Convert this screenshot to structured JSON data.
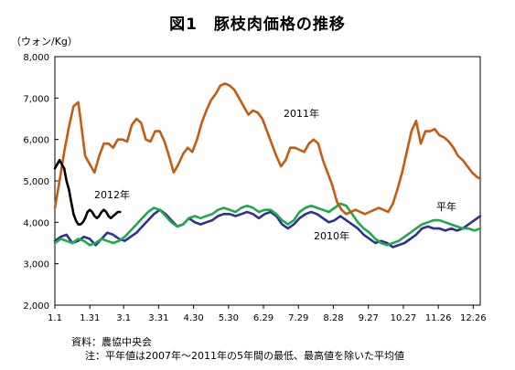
{
  "chart_data": {
    "type": "line",
    "title": "図1　豚枝肉価格の推移",
    "ylabel": "（ウォン/Kg）",
    "xlabel": "",
    "ylim": [
      2000,
      8000
    ],
    "yticks": [
      2000,
      3000,
      4000,
      5000,
      6000,
      7000,
      8000
    ],
    "ytick_labels": [
      "2,000",
      "3,000",
      "4,000",
      "5,000",
      "6,000",
      "7,000",
      "8,000"
    ],
    "x_domain": [
      0,
      365
    ],
    "x_ticks": [
      {
        "label": "1.1",
        "x": 0
      },
      {
        "label": "1.31",
        "x": 30
      },
      {
        "label": "3.1",
        "x": 59
      },
      {
        "label": "3.31",
        "x": 89
      },
      {
        "label": "4.30",
        "x": 119
      },
      {
        "label": "5.30",
        "x": 149
      },
      {
        "label": "6.29",
        "x": 179
      },
      {
        "label": "7.29",
        "x": 209
      },
      {
        "label": "8.28",
        "x": 239
      },
      {
        "label": "9.27",
        "x": 269
      },
      {
        "label": "10.27",
        "x": 299
      },
      {
        "label": "11.26",
        "x": 329
      },
      {
        "label": "12.26",
        "x": 359
      }
    ],
    "grid": false,
    "series": [
      {
        "name": "2011年",
        "color": "#c55a11",
        "x": [
          0,
          4,
          8,
          12,
          16,
          20,
          22,
          26,
          30,
          34,
          38,
          42,
          46,
          50,
          54,
          58,
          62,
          66,
          70,
          74,
          78,
          82,
          86,
          90,
          94,
          98,
          102,
          106,
          110,
          114,
          118,
          122,
          126,
          130,
          134,
          138,
          142,
          146,
          150,
          154,
          158,
          162,
          166,
          170,
          174,
          178,
          182,
          186,
          190,
          194,
          198,
          202,
          206,
          210,
          214,
          218,
          222,
          226,
          230,
          234,
          238,
          242,
          246,
          250,
          254,
          258,
          262,
          266,
          270,
          274,
          278,
          282,
          286,
          290,
          294,
          298,
          302,
          306,
          310,
          314,
          318,
          322,
          326,
          330,
          334,
          338,
          342,
          346,
          350,
          354,
          358,
          362,
          365
        ],
        "values": [
          4350,
          5000,
          5700,
          6300,
          6800,
          6900,
          6500,
          5600,
          5400,
          5200,
          5600,
          5900,
          5900,
          5800,
          6000,
          6000,
          5950,
          6350,
          6500,
          6400,
          6000,
          5950,
          6200,
          6200,
          5950,
          5600,
          5200,
          5400,
          5650,
          5800,
          5700,
          6000,
          6400,
          6700,
          6950,
          7100,
          7300,
          7350,
          7300,
          7200,
          7000,
          6800,
          6600,
          6700,
          6650,
          6500,
          6200,
          5900,
          5600,
          5350,
          5500,
          5800,
          5800,
          5750,
          5700,
          5900,
          6000,
          5900,
          5500,
          5200,
          4900,
          4500,
          4300,
          4200,
          4250,
          4300,
          4250,
          4200,
          4250,
          4300,
          4350,
          4300,
          4250,
          4450,
          4800,
          5200,
          5700,
          6200,
          6450,
          5900,
          6200,
          6200,
          6250,
          6100,
          6050,
          5950,
          5800,
          5600,
          5500,
          5350,
          5200,
          5100,
          5050
        ]
      },
      {
        "name": "2012年",
        "color": "#000000",
        "x": [
          0,
          2,
          4,
          6,
          8,
          10,
          12,
          14,
          16,
          18,
          20,
          22,
          24,
          26,
          28,
          30,
          32,
          34,
          36,
          38,
          40,
          42,
          44,
          46,
          48,
          50,
          52,
          54,
          56
        ],
        "values": [
          5300,
          5400,
          5500,
          5400,
          5300,
          5000,
          4800,
          4500,
          4200,
          4050,
          3950,
          3950,
          4000,
          4100,
          4250,
          4300,
          4250,
          4150,
          4100,
          4150,
          4250,
          4300,
          4250,
          4150,
          4100,
          4150,
          4200,
          4250,
          4250
        ]
      },
      {
        "name": "2010年",
        "color": "#2e3192",
        "x": [
          0,
          5,
          10,
          15,
          20,
          25,
          30,
          35,
          40,
          45,
          50,
          55,
          60,
          65,
          70,
          75,
          80,
          85,
          90,
          95,
          100,
          105,
          110,
          115,
          120,
          125,
          130,
          135,
          140,
          145,
          150,
          155,
          160,
          165,
          170,
          175,
          180,
          185,
          190,
          195,
          200,
          205,
          210,
          215,
          220,
          225,
          230,
          235,
          240,
          245,
          250,
          255,
          260,
          265,
          270,
          275,
          280,
          285,
          290,
          295,
          300,
          305,
          310,
          315,
          320,
          325,
          330,
          335,
          340,
          345,
          350,
          355,
          360,
          365
        ],
        "values": [
          3550,
          3650,
          3700,
          3500,
          3550,
          3650,
          3600,
          3450,
          3600,
          3750,
          3700,
          3600,
          3550,
          3650,
          3750,
          3900,
          4050,
          4200,
          4300,
          4200,
          4050,
          3900,
          3950,
          4100,
          4000,
          3950,
          4000,
          4050,
          4150,
          4200,
          4200,
          4150,
          4200,
          4250,
          4200,
          4100,
          4200,
          4250,
          4150,
          3950,
          3850,
          3950,
          4100,
          4200,
          4250,
          4200,
          4100,
          4000,
          4050,
          4150,
          4050,
          3950,
          3850,
          3700,
          3600,
          3500,
          3550,
          3500,
          3400,
          3450,
          3500,
          3600,
          3700,
          3850,
          3900,
          3850,
          3850,
          3800,
          3850,
          3800,
          3850,
          3950,
          4050,
          4150
        ]
      },
      {
        "name": "平年",
        "color": "#1fa84e",
        "x": [
          0,
          5,
          10,
          15,
          20,
          25,
          30,
          35,
          40,
          45,
          50,
          55,
          60,
          65,
          70,
          75,
          80,
          85,
          90,
          95,
          100,
          105,
          110,
          115,
          120,
          125,
          130,
          135,
          140,
          145,
          150,
          155,
          160,
          165,
          170,
          175,
          180,
          185,
          190,
          195,
          200,
          205,
          210,
          215,
          220,
          225,
          230,
          235,
          240,
          245,
          250,
          255,
          260,
          265,
          270,
          275,
          280,
          285,
          290,
          295,
          300,
          305,
          310,
          315,
          320,
          325,
          330,
          335,
          340,
          345,
          350,
          355,
          360,
          365
        ],
        "values": [
          3500,
          3600,
          3550,
          3500,
          3600,
          3550,
          3450,
          3500,
          3600,
          3550,
          3500,
          3550,
          3650,
          3800,
          3950,
          4100,
          4250,
          4350,
          4300,
          4150,
          4000,
          3900,
          3950,
          4100,
          4150,
          4100,
          4150,
          4200,
          4300,
          4350,
          4300,
          4250,
          4350,
          4400,
          4350,
          4250,
          4300,
          4300,
          4200,
          4050,
          3950,
          4050,
          4250,
          4350,
          4400,
          4350,
          4300,
          4250,
          4350,
          4450,
          4400,
          4200,
          4000,
          3850,
          3750,
          3600,
          3500,
          3450,
          3500,
          3550,
          3650,
          3750,
          3850,
          3950,
          4000,
          4050,
          4050,
          4000,
          3950,
          3900,
          3850,
          3850,
          3800,
          3850
        ]
      }
    ],
    "annotations": [
      {
        "text": "2011年",
        "series": "2011年"
      },
      {
        "text": "2012年",
        "series": "2012年"
      },
      {
        "text": "2010年",
        "series": "2010年"
      },
      {
        "text": "平年",
        "series": "平年"
      }
    ]
  },
  "footer": {
    "source": "資料：農協中央会",
    "note": "注：平年値は2007年～2011年の5年間の最低、最高値を除いた平均値"
  }
}
